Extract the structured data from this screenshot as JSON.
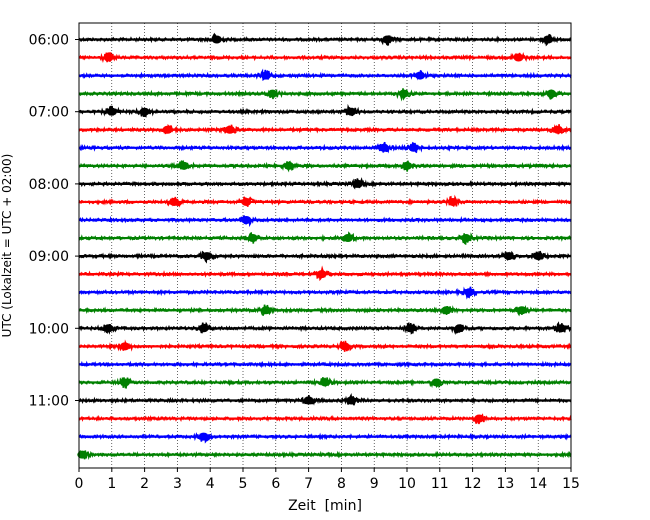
{
  "chart_data": {
    "type": "line",
    "subtype": "helicorder",
    "xlabel": "Zeit  [min]",
    "ylabel": "UTC (Lokalzeit = UTC + 02:00)",
    "xlim": [
      0,
      15
    ],
    "x_ticks": [
      "0",
      "1",
      "2",
      "3",
      "4",
      "5",
      "6",
      "7",
      "8",
      "9",
      "10",
      "11",
      "12",
      "13",
      "14",
      "15"
    ],
    "x_grid": "dotted vertical",
    "y_ticks": [
      "06:00",
      "07:00",
      "08:00",
      "09:00",
      "10:00",
      "11:00"
    ],
    "trace_colors": [
      "#000000",
      "#ff0000",
      "#0000ff",
      "#008000"
    ],
    "row_interval_min": 15,
    "traces": [
      {
        "start": "06:00",
        "color": "#000000",
        "events_min": [
          4.2,
          9.4,
          14.3
        ]
      },
      {
        "start": "06:15",
        "color": "#ff0000",
        "events_min": [
          0.9,
          13.4
        ]
      },
      {
        "start": "06:30",
        "color": "#0000ff",
        "events_min": [
          5.7,
          10.4
        ]
      },
      {
        "start": "06:45",
        "color": "#008000",
        "events_min": [
          5.9,
          9.9,
          14.4
        ]
      },
      {
        "start": "07:00",
        "color": "#000000",
        "events_min": [
          1.0,
          2.0,
          8.3
        ]
      },
      {
        "start": "07:15",
        "color": "#ff0000",
        "events_min": [
          2.7,
          4.6,
          14.6
        ]
      },
      {
        "start": "07:30",
        "color": "#0000ff",
        "events_min": [
          9.3,
          10.2
        ]
      },
      {
        "start": "07:45",
        "color": "#008000",
        "events_min": [
          3.2,
          6.4,
          10.0
        ]
      },
      {
        "start": "08:00",
        "color": "#000000",
        "events_min": [
          8.5
        ]
      },
      {
        "start": "08:15",
        "color": "#ff0000",
        "events_min": [
          2.9,
          5.1,
          11.4
        ]
      },
      {
        "start": "08:30",
        "color": "#0000ff",
        "events_min": [
          5.1
        ]
      },
      {
        "start": "08:45",
        "color": "#008000",
        "events_min": [
          5.3,
          8.2,
          11.8
        ]
      },
      {
        "start": "09:00",
        "color": "#000000",
        "events_min": [
          3.9,
          13.1,
          14.0
        ]
      },
      {
        "start": "09:15",
        "color": "#ff0000",
        "events_min": [
          7.4
        ]
      },
      {
        "start": "09:30",
        "color": "#0000ff",
        "events_min": [
          11.9
        ]
      },
      {
        "start": "09:45",
        "color": "#008000",
        "events_min": [
          5.7,
          11.2,
          13.5
        ]
      },
      {
        "start": "10:00",
        "color": "#000000",
        "events_min": [
          0.9,
          3.8,
          10.1,
          11.6,
          14.7
        ]
      },
      {
        "start": "10:15",
        "color": "#ff0000",
        "events_min": [
          1.4,
          8.1
        ]
      },
      {
        "start": "10:30",
        "color": "#0000ff",
        "events_min": []
      },
      {
        "start": "10:45",
        "color": "#008000",
        "events_min": [
          1.4,
          7.5,
          10.9
        ]
      },
      {
        "start": "11:00",
        "color": "#000000",
        "events_min": [
          7.0,
          8.3
        ]
      },
      {
        "start": "11:15",
        "color": "#ff0000",
        "events_min": [
          12.2
        ]
      },
      {
        "start": "11:30",
        "color": "#0000ff",
        "events_min": [
          3.8
        ]
      },
      {
        "start": "11:45",
        "color": "#008000",
        "events_min": [
          0.1
        ]
      }
    ]
  }
}
